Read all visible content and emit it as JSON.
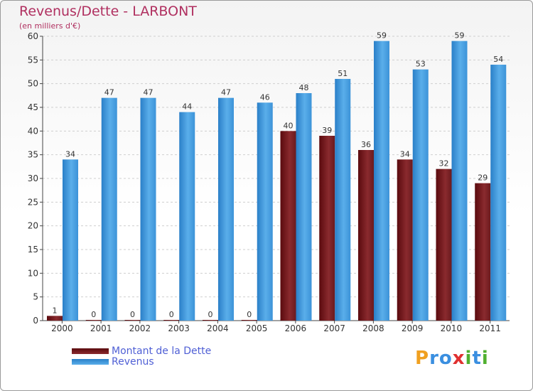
{
  "chart_data": {
    "type": "bar",
    "title": "Revenus/Dette - LARBONT",
    "subtitle": "(en milliers d'€)",
    "categories": [
      "2000",
      "2001",
      "2002",
      "2003",
      "2004",
      "2005",
      "2006",
      "2007",
      "2008",
      "2009",
      "2010",
      "2011"
    ],
    "series": [
      {
        "name": "Montant de la Dette",
        "values": [
          1,
          0,
          0,
          0,
          0,
          0,
          40,
          39,
          36,
          34,
          32,
          29
        ],
        "color": "#7a1f24"
      },
      {
        "name": "Revenus",
        "values": [
          34,
          47,
          47,
          44,
          47,
          46,
          48,
          51,
          59,
          53,
          59,
          54
        ],
        "color": "#4a9fe0"
      }
    ],
    "ylim": [
      0,
      60
    ],
    "yticks": [
      0,
      5,
      10,
      15,
      20,
      25,
      30,
      35,
      40,
      45,
      50,
      55,
      60
    ],
    "grid": true,
    "legend": "bottom-left"
  },
  "logo": {
    "letters": [
      {
        "ch": "P",
        "color": "#f0a020"
      },
      {
        "ch": "r",
        "color": "#3a8fe0"
      },
      {
        "ch": "o",
        "color": "#3a8fe0"
      },
      {
        "ch": "x",
        "color": "#e03030"
      },
      {
        "ch": "i",
        "color": "#50b030"
      },
      {
        "ch": "t",
        "color": "#3a8fe0"
      },
      {
        "ch": "i",
        "color": "#50b030"
      }
    ]
  }
}
